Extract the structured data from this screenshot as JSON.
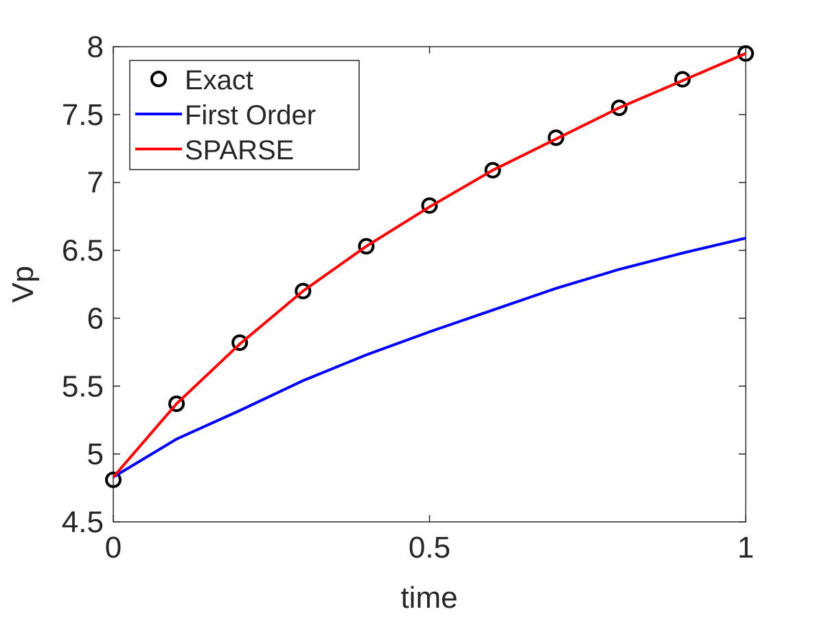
{
  "chart_data": {
    "type": "line",
    "x_label": "time",
    "y_label": "Vp",
    "x": [
      0,
      0.1,
      0.2,
      0.3,
      0.4,
      0.5,
      0.6,
      0.7,
      0.8,
      0.9,
      1
    ],
    "series": [
      {
        "name": "Exact",
        "color": "#000000",
        "style": "marker",
        "values": [
          4.81,
          5.37,
          5.82,
          6.2,
          6.53,
          6.83,
          7.09,
          7.33,
          7.55,
          7.76,
          7.95
        ]
      },
      {
        "name": "First Order",
        "color": "#0000ff",
        "style": "line",
        "values": [
          4.83,
          5.11,
          5.32,
          5.54,
          5.73,
          5.9,
          6.06,
          6.22,
          6.36,
          6.48,
          6.59
        ]
      },
      {
        "name": "SPARSE",
        "color": "#ff0000",
        "style": "line",
        "values": [
          4.83,
          5.37,
          5.81,
          6.2,
          6.53,
          6.82,
          7.09,
          7.32,
          7.55,
          7.75,
          7.95
        ]
      }
    ],
    "xlim": [
      0,
      1
    ],
    "xticks": [
      0,
      0.5,
      1
    ],
    "ylim": [
      4.5,
      8
    ],
    "yticks": [
      4.5,
      5,
      5.5,
      6,
      6.5,
      7,
      7.5,
      8
    ],
    "grid": false,
    "legend": "northwest"
  }
}
